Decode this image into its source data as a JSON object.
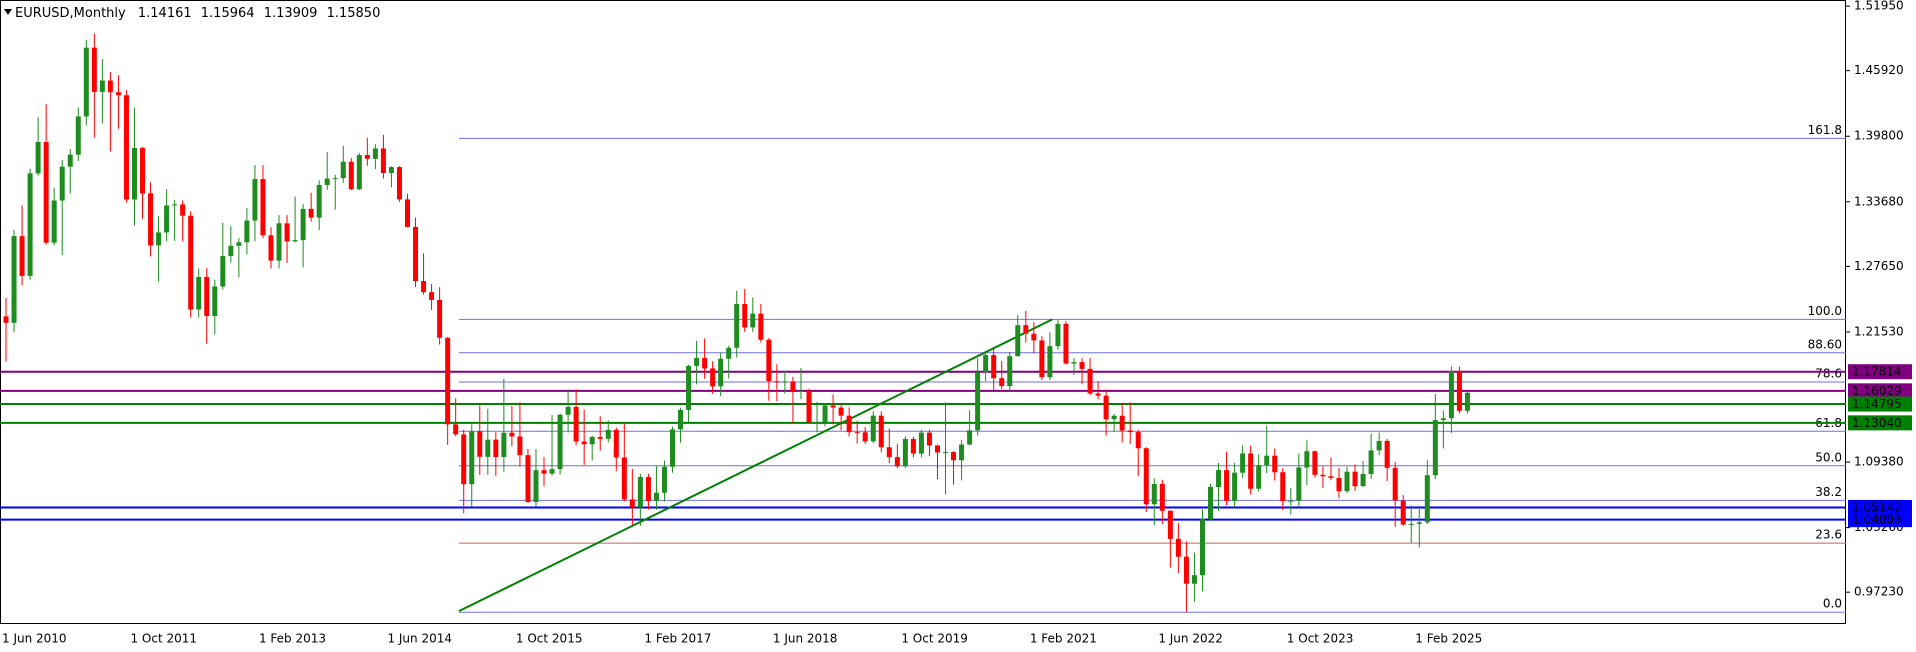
{
  "chart_data": {
    "type": "candlestick",
    "title": "EURUSD,Monthly",
    "last_ohlc_labels": [
      "1.14161",
      "1.15964",
      "1.13909",
      "1.15850"
    ],
    "up_color": "#1e8c1e",
    "down_color": "#ff0000",
    "categories": [
      "1 Jun 2010",
      null,
      null,
      null,
      null,
      null,
      null,
      null,
      null,
      null,
      null,
      null,
      null,
      null,
      null,
      null,
      "1 Oct 2011",
      null,
      null,
      null,
      null,
      null,
      null,
      null,
      null,
      null,
      null,
      null,
      null,
      null,
      null,
      null,
      "1 Feb 2013",
      null,
      null,
      null,
      null,
      null,
      null,
      null,
      null,
      null,
      null,
      null,
      null,
      null,
      null,
      null,
      "1 Jun 2014",
      null,
      null,
      null,
      null,
      null,
      null,
      null,
      null,
      null,
      null,
      null,
      null,
      null,
      null,
      null,
      "1 Oct 2015",
      null,
      null,
      null,
      null,
      null,
      null,
      null,
      null,
      null,
      null,
      null,
      null,
      null,
      null,
      null,
      "1 Feb 2017",
      null,
      null,
      null,
      null,
      null,
      null,
      null,
      null,
      null,
      null,
      null,
      null,
      null,
      null,
      null,
      "1 Jun 2018",
      null,
      null,
      null,
      null,
      null,
      null,
      null,
      null,
      null,
      null,
      null,
      null,
      null,
      null,
      null,
      "1 Oct 2019",
      null,
      null,
      null,
      null,
      null,
      null,
      null,
      null,
      null,
      null,
      null,
      null,
      null,
      null,
      null,
      "1 Feb 2021",
      null,
      null,
      null,
      null,
      null,
      null,
      null,
      null,
      null,
      null,
      null,
      null,
      null,
      null,
      null,
      "1 Jun 2022",
      null,
      null,
      null,
      null,
      null,
      null,
      null,
      null,
      null,
      null,
      null,
      null,
      null,
      null,
      null,
      "1 Oct 2023",
      null,
      null,
      null,
      null,
      null,
      null,
      null,
      null,
      null,
      null,
      null,
      null,
      null,
      null,
      null,
      "1 Feb 2025",
      null,
      null,
      null,
      null,
      null,
      null
    ],
    "ohlc": [
      [
        1.2298,
        1.247,
        1.1876,
        1.2238
      ],
      [
        1.2238,
        1.3107,
        1.2152,
        1.3047
      ],
      [
        1.3047,
        1.3334,
        1.2589,
        1.2676
      ],
      [
        1.2676,
        1.3675,
        1.264,
        1.3633
      ],
      [
        1.3633,
        1.4158,
        1.3612,
        1.3926
      ],
      [
        1.3926,
        1.4282,
        1.2969,
        1.2986
      ],
      [
        1.2986,
        1.35,
        1.296,
        1.338
      ],
      [
        1.338,
        1.376,
        1.287,
        1.3696
      ],
      [
        1.3696,
        1.386,
        1.3444,
        1.3808
      ],
      [
        1.3808,
        1.4248,
        1.375,
        1.4165
      ],
      [
        1.4165,
        1.488,
        1.408,
        1.4807
      ],
      [
        1.4807,
        1.494,
        1.3968,
        1.4394
      ],
      [
        1.4394,
        1.47,
        1.41,
        1.45
      ],
      [
        1.45,
        1.458,
        1.3837,
        1.4391
      ],
      [
        1.4391,
        1.455,
        1.405,
        1.4363
      ],
      [
        1.4363,
        1.441,
        1.3362,
        1.3389
      ],
      [
        1.3389,
        1.4247,
        1.3145,
        1.3871
      ],
      [
        1.3871,
        1.388,
        1.321,
        1.3447
      ],
      [
        1.3447,
        1.355,
        1.2858,
        1.2961
      ],
      [
        1.2961,
        1.3234,
        1.2624,
        1.3082
      ],
      [
        1.3082,
        1.3486,
        1.3,
        1.3334
      ],
      [
        1.3334,
        1.3386,
        1.3003,
        1.3343
      ],
      [
        1.3343,
        1.3381,
        1.3,
        1.3238
      ],
      [
        1.3238,
        1.3283,
        1.2288,
        1.2362
      ],
      [
        1.2362,
        1.2745,
        1.2288,
        1.2666
      ],
      [
        1.2666,
        1.2748,
        1.2042,
        1.2302
      ],
      [
        1.2302,
        1.264,
        1.213,
        1.2577
      ],
      [
        1.2577,
        1.3172,
        1.255,
        1.2861
      ],
      [
        1.2861,
        1.314,
        1.28,
        1.2957
      ],
      [
        1.2957,
        1.303,
        1.2661,
        1.299
      ],
      [
        1.299,
        1.3308,
        1.2877,
        1.3193
      ],
      [
        1.3193,
        1.3711,
        1.3,
        1.358
      ],
      [
        1.358,
        1.3711,
        1.303,
        1.3055
      ],
      [
        1.3055,
        1.313,
        1.2745,
        1.2819
      ],
      [
        1.2819,
        1.3243,
        1.2746,
        1.3167
      ],
      [
        1.3167,
        1.3243,
        1.2796,
        1.2998
      ],
      [
        1.2998,
        1.3416,
        1.299,
        1.301
      ],
      [
        1.301,
        1.3346,
        1.2755,
        1.3302
      ],
      [
        1.3302,
        1.3452,
        1.3183,
        1.322
      ],
      [
        1.322,
        1.3568,
        1.3105,
        1.3525
      ],
      [
        1.3525,
        1.3832,
        1.3479,
        1.3585
      ],
      [
        1.3585,
        1.362,
        1.3296,
        1.3589
      ],
      [
        1.3589,
        1.3893,
        1.3545,
        1.3742
      ],
      [
        1.3742,
        1.3775,
        1.3477,
        1.3485
      ],
      [
        1.3485,
        1.3825,
        1.3477,
        1.3805
      ],
      [
        1.3805,
        1.3967,
        1.3705,
        1.3769
      ],
      [
        1.3769,
        1.3906,
        1.3672,
        1.3866
      ],
      [
        1.3866,
        1.3993,
        1.3585,
        1.3637
      ],
      [
        1.3637,
        1.37,
        1.3503,
        1.3692
      ],
      [
        1.3692,
        1.37,
        1.3367,
        1.339
      ],
      [
        1.339,
        1.3443,
        1.313,
        1.3133
      ],
      [
        1.3133,
        1.3222,
        1.257,
        1.2628
      ],
      [
        1.2628,
        1.2887,
        1.2501,
        1.2524
      ],
      [
        1.2524,
        1.2601,
        1.2358,
        1.2452
      ],
      [
        1.2452,
        1.257,
        1.2035,
        1.2098
      ],
      [
        1.2098,
        1.2105,
        1.1098,
        1.129
      ],
      [
        1.129,
        1.1534,
        1.118,
        1.1196
      ],
      [
        1.1196,
        1.124,
        1.0458,
        1.0731
      ],
      [
        1.0731,
        1.129,
        1.052,
        1.1224
      ],
      [
        1.1224,
        1.1467,
        1.0819,
        1.0987
      ],
      [
        1.0987,
        1.1436,
        1.0819,
        1.1147
      ],
      [
        1.1147,
        1.1216,
        1.0809,
        1.0985
      ],
      [
        1.0985,
        1.1714,
        1.0848,
        1.1212
      ],
      [
        1.1212,
        1.146,
        1.1087,
        1.1177
      ],
      [
        1.1177,
        1.1495,
        1.0896,
        1.1002
      ],
      [
        1.1002,
        1.106,
        1.0557,
        1.0565
      ],
      [
        1.0565,
        1.106,
        1.0524,
        1.0862
      ],
      [
        1.0862,
        1.0985,
        1.071,
        1.083
      ],
      [
        1.083,
        1.1376,
        1.081,
        1.0872
      ],
      [
        1.0872,
        1.139,
        1.0822,
        1.138
      ],
      [
        1.138,
        1.1615,
        1.1214,
        1.1453
      ],
      [
        1.1453,
        1.1616,
        1.1097,
        1.113
      ],
      [
        1.113,
        1.1428,
        1.0912,
        1.1104
      ],
      [
        1.1104,
        1.1186,
        1.0952,
        1.1172
      ],
      [
        1.1172,
        1.1366,
        1.1046,
        1.1155
      ],
      [
        1.1155,
        1.1327,
        1.1122,
        1.1239
      ],
      [
        1.1239,
        1.1259,
        1.0852,
        1.0981
      ],
      [
        1.0981,
        1.13,
        1.0569,
        1.0589
      ],
      [
        1.0589,
        1.0874,
        1.0352,
        1.0517
      ],
      [
        1.0517,
        1.0829,
        1.034,
        1.0798
      ],
      [
        1.0798,
        1.0829,
        1.0494,
        1.0575
      ],
      [
        1.0575,
        1.0906,
        1.0493,
        1.0652
      ],
      [
        1.0652,
        1.0951,
        1.0569,
        1.0894
      ],
      [
        1.0894,
        1.1268,
        1.0839,
        1.1243
      ],
      [
        1.1243,
        1.1446,
        1.1118,
        1.1425
      ],
      [
        1.1425,
        1.1846,
        1.1312,
        1.1836
      ],
      [
        1.1836,
        1.207,
        1.1662,
        1.1909
      ],
      [
        1.1909,
        1.2092,
        1.1717,
        1.1812
      ],
      [
        1.1812,
        1.188,
        1.1575,
        1.1645
      ],
      [
        1.1645,
        1.1961,
        1.1554,
        1.1903
      ],
      [
        1.1903,
        1.2023,
        1.1718,
        1.2005
      ],
      [
        1.2005,
        1.2537,
        1.1916,
        1.2414
      ],
      [
        1.2414,
        1.2555,
        1.2153,
        1.2195
      ],
      [
        1.2195,
        1.2476,
        1.2154,
        1.2324
      ],
      [
        1.2324,
        1.2414,
        1.2055,
        1.208
      ],
      [
        1.208,
        1.2097,
        1.151,
        1.1693
      ],
      [
        1.1693,
        1.1852,
        1.1508,
        1.1683
      ],
      [
        1.1683,
        1.1791,
        1.1575,
        1.1691
      ],
      [
        1.1691,
        1.1734,
        1.1301,
        1.1601
      ],
      [
        1.1601,
        1.1815,
        1.1526,
        1.1604
      ],
      [
        1.1604,
        1.1622,
        1.1302,
        1.1311
      ],
      [
        1.1311,
        1.15,
        1.1215,
        1.1313
      ],
      [
        1.1313,
        1.1486,
        1.1269,
        1.1467
      ],
      [
        1.1467,
        1.157,
        1.1289,
        1.1447
      ],
      [
        1.1447,
        1.1489,
        1.1234,
        1.1371
      ],
      [
        1.1371,
        1.1448,
        1.1176,
        1.1217
      ],
      [
        1.1217,
        1.1324,
        1.111,
        1.1216
      ],
      [
        1.1216,
        1.1264,
        1.1106,
        1.1131
      ],
      [
        1.1131,
        1.1412,
        1.1116,
        1.1371
      ],
      [
        1.1371,
        1.1412,
        1.1028,
        1.1076
      ],
      [
        1.1076,
        1.1249,
        1.0926,
        1.0984
      ],
      [
        1.0984,
        1.1109,
        1.0879,
        1.0899
      ],
      [
        1.0899,
        1.1179,
        1.0879,
        1.1153
      ],
      [
        1.1153,
        1.1175,
        1.0981,
        1.1017
      ],
      [
        1.1017,
        1.1239,
        1.0981,
        1.1213
      ],
      [
        1.1213,
        1.1239,
        1.0992,
        1.1093
      ],
      [
        1.1093,
        1.11,
        1.0778,
        1.1027
      ],
      [
        1.1027,
        1.1495,
        1.0636,
        1.1031
      ],
      [
        1.1031,
        1.104,
        1.0727,
        1.0955
      ],
      [
        1.0955,
        1.1147,
        1.0767,
        1.1102
      ],
      [
        1.1102,
        1.1422,
        1.1095,
        1.1234
      ],
      [
        1.1234,
        1.1909,
        1.1185,
        1.1778
      ],
      [
        1.1778,
        1.1966,
        1.1696,
        1.1937
      ],
      [
        1.1937,
        1.2011,
        1.1612,
        1.1721
      ],
      [
        1.1721,
        1.1881,
        1.1621,
        1.1647
      ],
      [
        1.1647,
        1.1965,
        1.1603,
        1.1926
      ],
      [
        1.1926,
        1.231,
        1.1924,
        1.2216
      ],
      [
        1.2216,
        1.2349,
        1.2054,
        1.2136
      ],
      [
        1.2136,
        1.2243,
        1.1952,
        1.2074
      ],
      [
        1.2074,
        1.2113,
        1.1704,
        1.173
      ],
      [
        1.173,
        1.215,
        1.1704,
        1.202
      ],
      [
        1.202,
        1.2266,
        1.1986,
        1.2228
      ],
      [
        1.2228,
        1.2254,
        1.1847,
        1.1858
      ],
      [
        1.1858,
        1.1909,
        1.1752,
        1.1871
      ],
      [
        1.1871,
        1.1909,
        1.1664,
        1.1808
      ],
      [
        1.1808,
        1.1909,
        1.1563,
        1.1578
      ],
      [
        1.1578,
        1.1692,
        1.1524,
        1.1558
      ],
      [
        1.1558,
        1.1616,
        1.1186,
        1.1338
      ],
      [
        1.1338,
        1.1386,
        1.1222,
        1.137
      ],
      [
        1.137,
        1.1483,
        1.1121,
        1.1233
      ],
      [
        1.1233,
        1.1495,
        1.1106,
        1.1218
      ],
      [
        1.1218,
        1.1237,
        1.0806,
        1.1067
      ],
      [
        1.1067,
        1.1076,
        1.0471,
        1.0544
      ],
      [
        1.0544,
        1.0787,
        1.0349,
        1.0733
      ],
      [
        1.0733,
        1.0773,
        1.0359,
        1.0484
      ],
      [
        1.0484,
        1.0486,
        0.9952,
        1.0221
      ],
      [
        1.0221,
        1.0369,
        0.9901,
        1.0054
      ],
      [
        1.0054,
        1.0198,
        0.9536,
        0.9802
      ],
      [
        0.9802,
        1.0094,
        0.9632,
        0.9882
      ],
      [
        0.9882,
        1.0497,
        0.973,
        1.0405
      ],
      [
        1.0405,
        1.0736,
        1.0393,
        1.0705
      ],
      [
        1.0705,
        1.0929,
        1.0483,
        1.0863
      ],
      [
        1.0863,
        1.1033,
        1.0533,
        1.0576
      ],
      [
        1.0576,
        1.093,
        1.0516,
        1.0839
      ],
      [
        1.0839,
        1.1095,
        1.0788,
        1.1018
      ],
      [
        1.1018,
        1.1092,
        1.0635,
        1.0689
      ],
      [
        1.0689,
        1.1012,
        1.0662,
        1.0909
      ],
      [
        1.0909,
        1.1276,
        1.0834,
        1.0997
      ],
      [
        1.0997,
        1.1065,
        1.0766,
        1.0843
      ],
      [
        1.0843,
        1.0882,
        1.0488,
        1.0573
      ],
      [
        1.0573,
        1.0695,
        1.0448,
        1.0577
      ],
      [
        1.0577,
        1.1017,
        1.0516,
        1.0887
      ],
      [
        1.0887,
        1.114,
        1.0723,
        1.1039
      ],
      [
        1.1039,
        1.1046,
        1.0795,
        1.0819
      ],
      [
        1.0819,
        1.0898,
        1.0695,
        1.0805
      ],
      [
        1.0805,
        1.0981,
        1.0768,
        1.079
      ],
      [
        1.079,
        1.0885,
        1.0601,
        1.0666
      ],
      [
        1.0666,
        1.0895,
        1.065,
        1.0848
      ],
      [
        1.0848,
        1.0916,
        1.0668,
        1.0713
      ],
      [
        1.0713,
        1.0948,
        1.0709,
        1.0826
      ],
      [
        1.0826,
        1.1202,
        1.0778,
        1.1047
      ],
      [
        1.1047,
        1.1214,
        1.1001,
        1.1135
      ],
      [
        1.1135,
        1.1154,
        1.0761,
        1.0884
      ],
      [
        1.0884,
        1.0937,
        1.0335,
        1.0578
      ],
      [
        1.0578,
        1.063,
        1.0343,
        1.0354
      ],
      [
        1.0354,
        1.0533,
        1.0178,
        1.0361
      ],
      [
        1.0361,
        1.0528,
        1.0141,
        1.0375
      ],
      [
        1.0375,
        1.0955,
        1.036,
        1.0815
      ],
      [
        1.0815,
        1.1573,
        1.0778,
        1.133
      ],
      [
        1.133,
        1.142,
        1.1065,
        1.1347
      ],
      [
        1.1347,
        1.183,
        1.1211,
        1.1787
      ],
      [
        1.1787,
        1.183,
        1.1392,
        1.1416
      ],
      [
        1.14161,
        1.15964,
        1.13909,
        1.1585
      ]
    ],
    "ylim": [
      0.9426,
      1.5252
    ],
    "yticks": [
      {
        "value": 1.5195,
        "label": "1.51950"
      },
      {
        "value": 1.4592,
        "label": "1.45920"
      },
      {
        "value": 1.398,
        "label": "1.39800"
      },
      {
        "value": 1.3368,
        "label": "1.33680"
      },
      {
        "value": 1.2765,
        "label": "1.27650"
      },
      {
        "value": 1.2153,
        "label": "1.21530"
      },
      {
        "value": 1.0938,
        "label": "1.09380"
      },
      {
        "value": 1.0326,
        "label": "1.03260"
      },
      {
        "value": 0.9723,
        "label": "0.97230"
      }
    ],
    "levels": {
      "values": [
        1.17814,
        1.16029,
        1.14795,
        {
          "value": 1.1304,
          "label": "1.13040"
        },
        1.05142,
        1.04003
      ],
      "colors": [
        "#800080",
        "#800080",
        "#008000",
        "#008000",
        "#0000ff",
        "#0000ff"
      ]
    },
    "trendline": {
      "x": [
        56.4,
        130.3
      ],
      "y": [
        0.9546,
        1.227
      ],
      "color": "#008000"
    },
    "fib": {
      "price_0": 0.9536,
      "price_100": 1.227,
      "levels": [
        {
          "value": 161.8,
          "label": "161.8"
        },
        {
          "value": 100,
          "label": "100.0"
        },
        {
          "value": 88.6,
          "label": "88.60"
        },
        {
          "value": 78.6,
          "label": "78.6"
        },
        {
          "value": 61.8,
          "label": "61.8"
        },
        {
          "value": 50,
          "label": "50.0"
        },
        {
          "value": 38.2,
          "label": "38.2"
        },
        {
          "value": 23.6,
          "label": "23.6"
        },
        {
          "value": 0,
          "label": "0.0"
        }
      ],
      "colors": [
        "#7070e0",
        "#7070e0",
        "#7070e0",
        "#7070e0",
        "#7070e0",
        "#7070e0",
        "#7070e0",
        "#c06060",
        "#7070e0"
      ]
    }
  }
}
